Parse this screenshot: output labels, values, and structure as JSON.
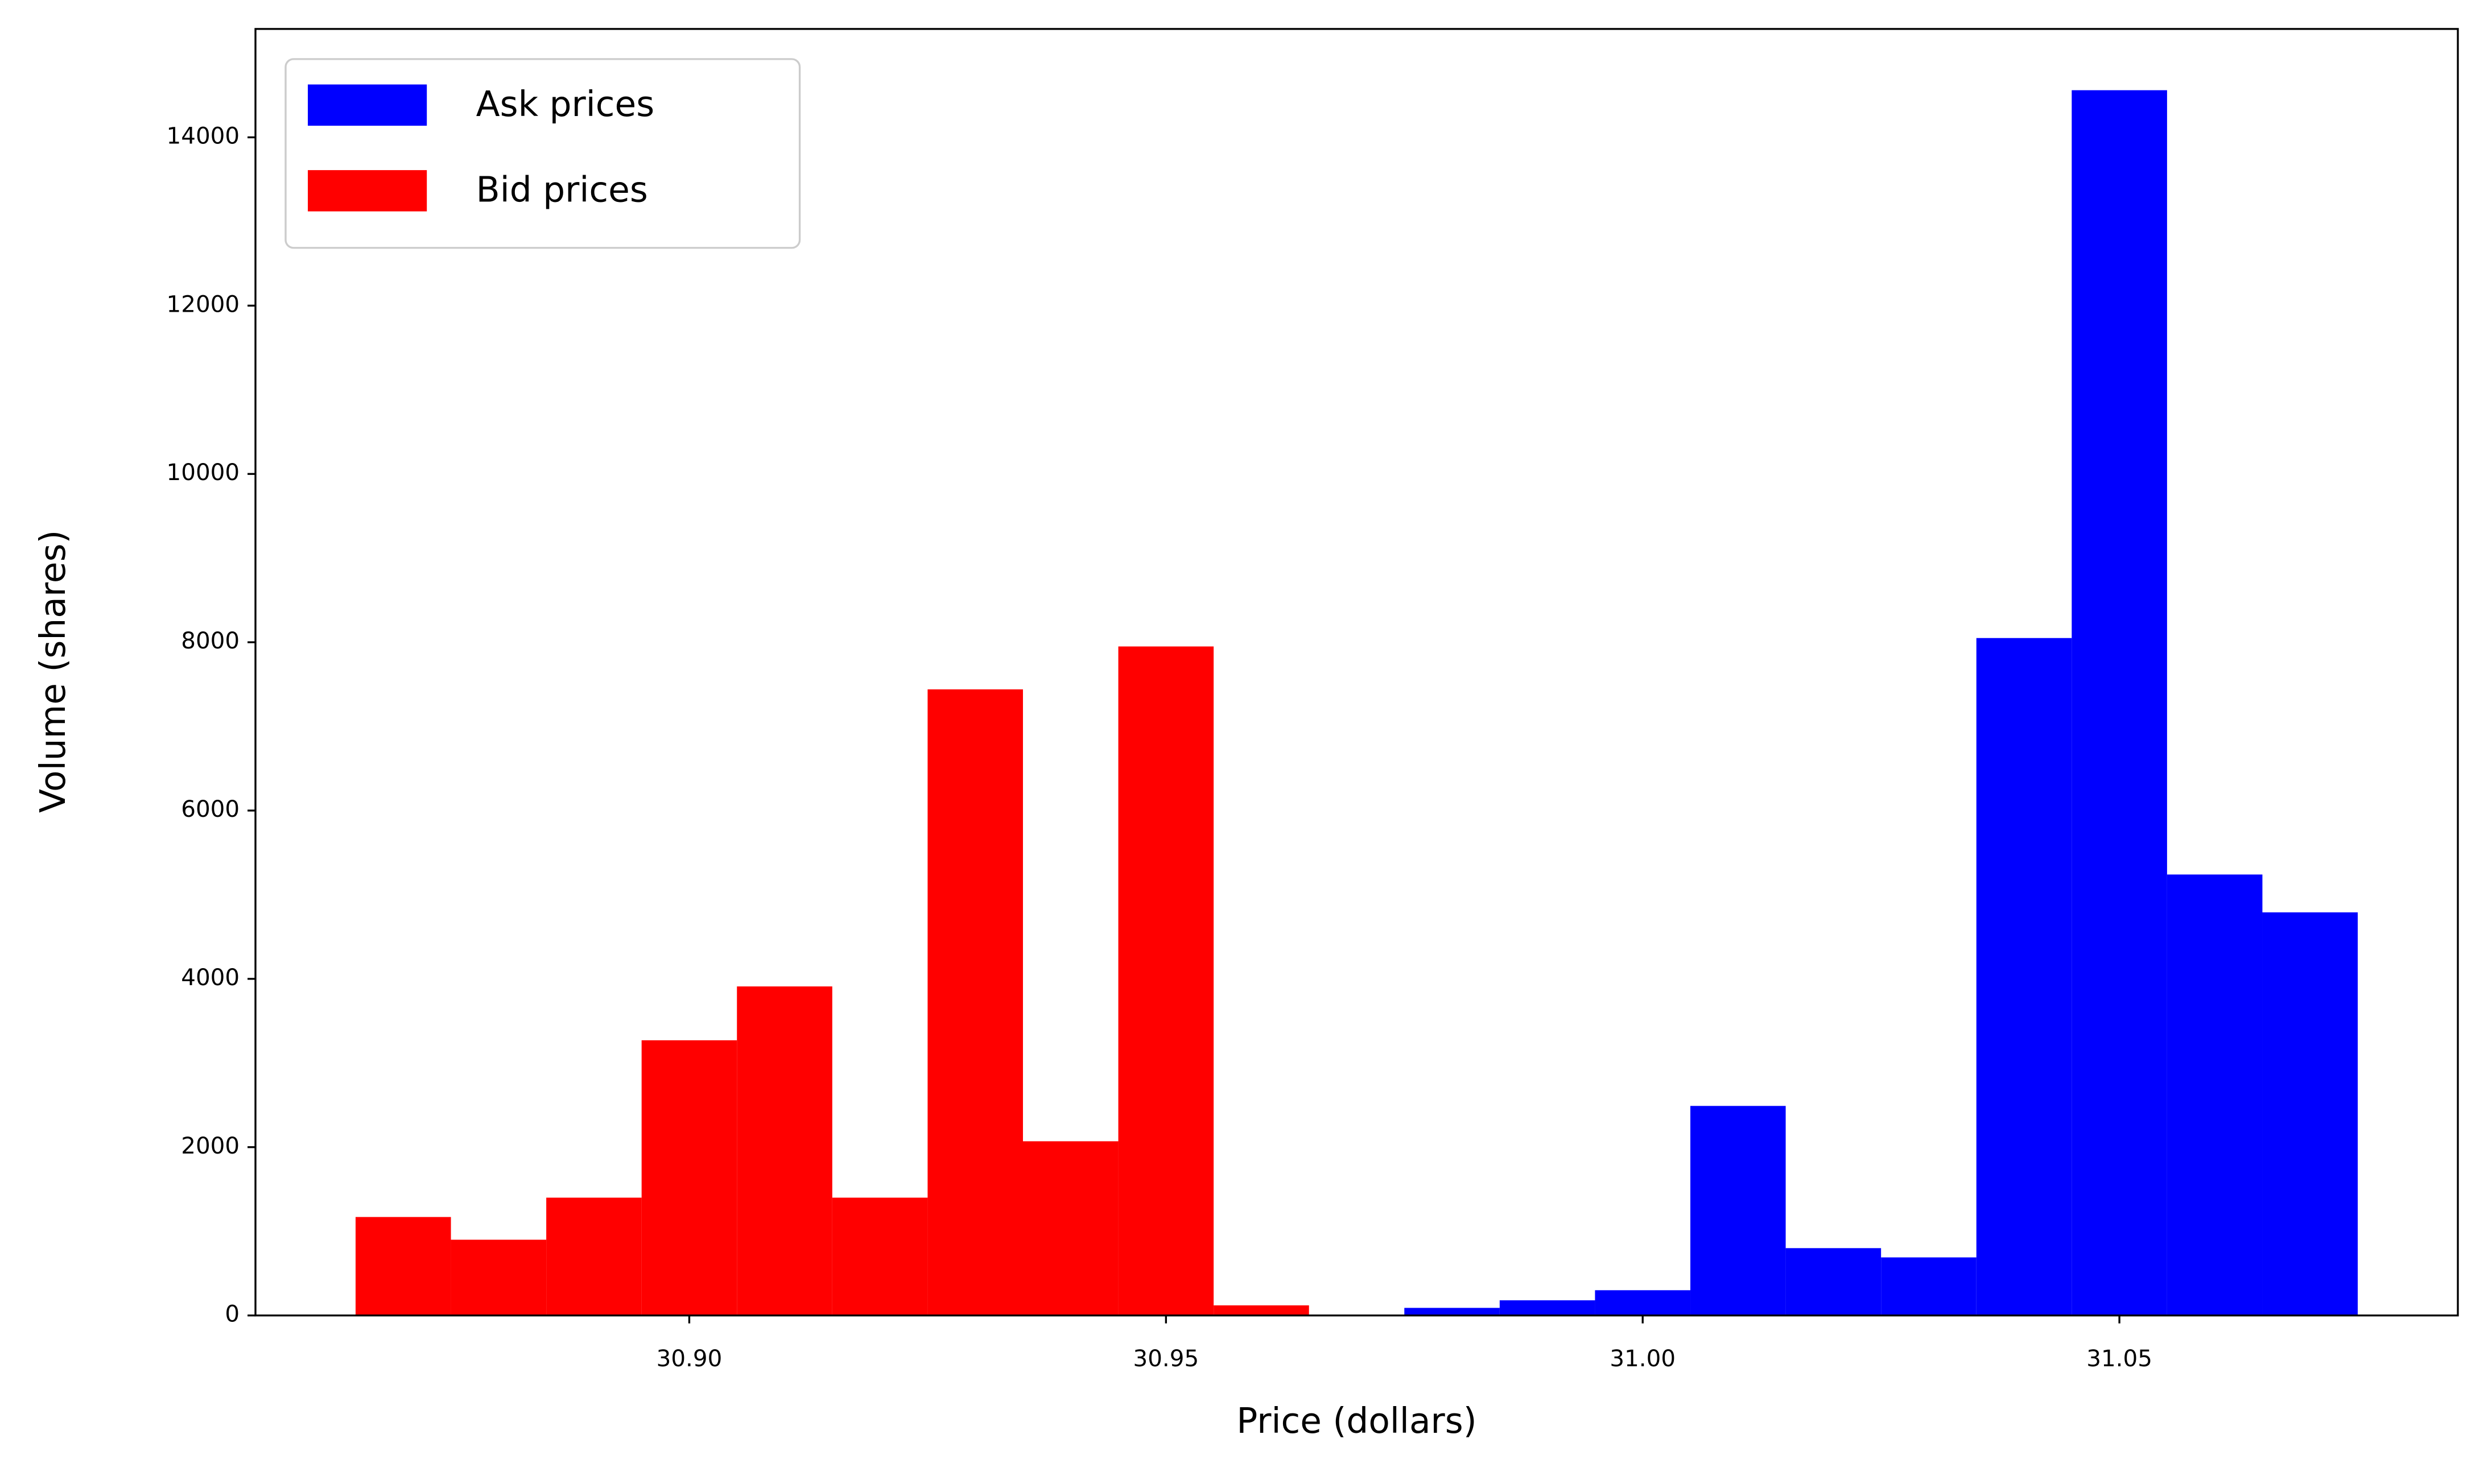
{
  "chart_data": {
    "type": "histogram",
    "xlabel": "Price (dollars)",
    "ylabel": "Volume (shares)",
    "series": [
      {
        "name": "Ask prices",
        "color": "#0000ff",
        "bins": [
          30.975,
          30.985,
          30.995,
          31.005,
          31.015,
          31.025,
          31.035,
          31.045,
          31.055,
          31.065,
          31.075
        ],
        "values": [
          90,
          180,
          300,
          2490,
          800,
          690,
          8050,
          14560,
          5240,
          4790
        ]
      },
      {
        "name": "Bid prices",
        "color": "#ff0000",
        "bins": [
          30.865,
          30.875,
          30.885,
          30.895,
          30.905,
          30.915,
          30.925,
          30.935,
          30.945,
          30.955,
          30.965
        ],
        "values": [
          1170,
          900,
          1400,
          3270,
          3910,
          1400,
          7440,
          2070,
          7950,
          120
        ]
      }
    ],
    "xlim": [
      30.8545,
      31.0855
    ],
    "xticks": [
      {
        "value": 30.9,
        "label": "30.90"
      },
      30.95,
      {
        "value": 31,
        "label": "31.00"
      },
      31.05
    ],
    "ylim": [
      0,
      15288
    ],
    "yticks": [
      0,
      2000,
      4000,
      6000,
      8000,
      10000,
      12000,
      14000
    ],
    "legend": "upper left"
  }
}
